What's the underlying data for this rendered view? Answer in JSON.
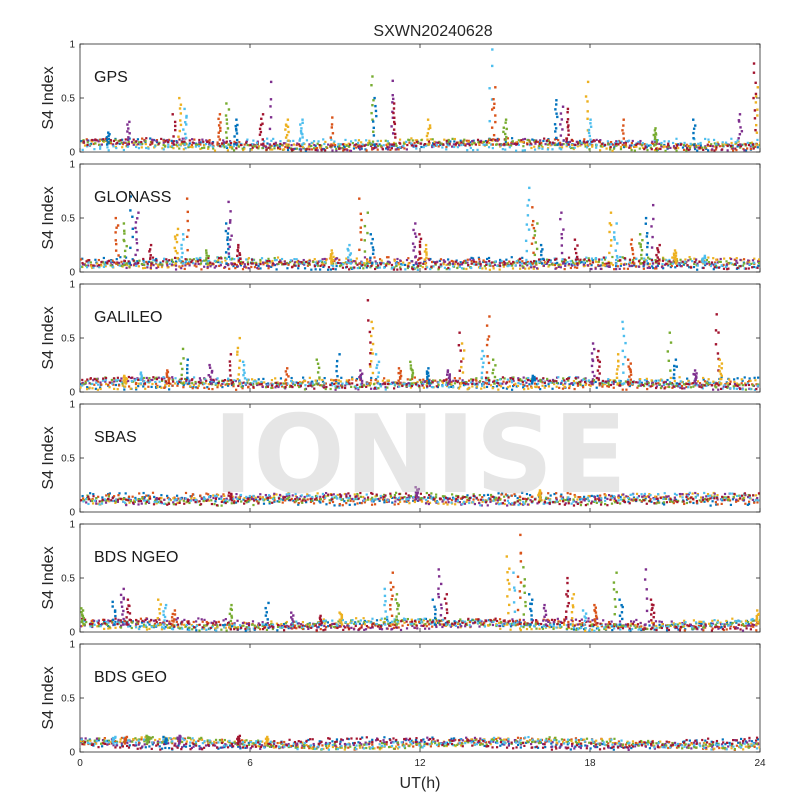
{
  "figure": {
    "title": "SXWN20240628",
    "watermark": "IONISE",
    "xlabel": "UT(h)",
    "ylabel": "S4 Index"
  },
  "chart_data": {
    "type": "scatter",
    "title": "SXWN20240628",
    "xlabel": "UT(h)",
    "ylabel": "S4 Index",
    "xlim": [
      0,
      24
    ],
    "ylim": [
      0,
      1
    ],
    "x_ticks": [
      "0",
      "6",
      "12",
      "18",
      "24"
    ],
    "y_ticks": [
      "0",
      "0.5",
      "1"
    ],
    "grid": false,
    "color_cycle": [
      "#0072BD",
      "#D95319",
      "#EDB120",
      "#7E2F8E",
      "#77AC30",
      "#4DBEEE",
      "#A2142F"
    ],
    "panels": [
      {
        "label": "GPS",
        "baseline": 0.07,
        "spikes": [
          {
            "x": 1.0,
            "y": 0.18
          },
          {
            "x": 1.7,
            "y": 0.28
          },
          {
            "x": 3.3,
            "y": 0.35
          },
          {
            "x": 3.5,
            "y": 0.5
          },
          {
            "x": 3.7,
            "y": 0.4
          },
          {
            "x": 4.9,
            "y": 0.35
          },
          {
            "x": 5.2,
            "y": 0.45
          },
          {
            "x": 5.5,
            "y": 0.3
          },
          {
            "x": 6.7,
            "y": 0.65
          },
          {
            "x": 6.4,
            "y": 0.35
          },
          {
            "x": 7.3,
            "y": 0.3
          },
          {
            "x": 7.8,
            "y": 0.3
          },
          {
            "x": 8.9,
            "y": 0.32
          },
          {
            "x": 10.3,
            "y": 0.7
          },
          {
            "x": 10.4,
            "y": 0.5
          },
          {
            "x": 11.0,
            "y": 0.66
          },
          {
            "x": 11.1,
            "y": 0.45
          },
          {
            "x": 12.3,
            "y": 0.3
          },
          {
            "x": 14.5,
            "y": 0.95
          },
          {
            "x": 14.6,
            "y": 0.6
          },
          {
            "x": 15.0,
            "y": 0.3
          },
          {
            "x": 16.8,
            "y": 0.48
          },
          {
            "x": 17.0,
            "y": 0.42
          },
          {
            "x": 17.2,
            "y": 0.4
          },
          {
            "x": 17.9,
            "y": 0.65
          },
          {
            "x": 18.0,
            "y": 0.3
          },
          {
            "x": 19.2,
            "y": 0.3
          },
          {
            "x": 20.3,
            "y": 0.22
          },
          {
            "x": 21.7,
            "y": 0.3
          },
          {
            "x": 23.3,
            "y": 0.35
          },
          {
            "x": 23.8,
            "y": 0.82
          },
          {
            "x": 23.9,
            "y": 0.6
          }
        ]
      },
      {
        "label": "GLONASS",
        "baseline": 0.08,
        "spikes": [
          {
            "x": 1.3,
            "y": 0.5
          },
          {
            "x": 1.6,
            "y": 0.45
          },
          {
            "x": 1.8,
            "y": 0.7
          },
          {
            "x": 2.0,
            "y": 0.55
          },
          {
            "x": 2.5,
            "y": 0.25
          },
          {
            "x": 3.4,
            "y": 0.4
          },
          {
            "x": 3.6,
            "y": 0.35
          },
          {
            "x": 3.8,
            "y": 0.68
          },
          {
            "x": 4.5,
            "y": 0.2
          },
          {
            "x": 5.2,
            "y": 0.45
          },
          {
            "x": 5.3,
            "y": 0.65
          },
          {
            "x": 5.6,
            "y": 0.25
          },
          {
            "x": 8.9,
            "y": 0.2
          },
          {
            "x": 9.5,
            "y": 0.25
          },
          {
            "x": 9.9,
            "y": 0.68
          },
          {
            "x": 10.1,
            "y": 0.55
          },
          {
            "x": 10.3,
            "y": 0.35
          },
          {
            "x": 11.8,
            "y": 0.45
          },
          {
            "x": 12.0,
            "y": 0.35
          },
          {
            "x": 12.2,
            "y": 0.25
          },
          {
            "x": 15.8,
            "y": 0.78
          },
          {
            "x": 16.0,
            "y": 0.6
          },
          {
            "x": 16.1,
            "y": 0.45
          },
          {
            "x": 16.3,
            "y": 0.25
          },
          {
            "x": 17.0,
            "y": 0.55
          },
          {
            "x": 17.5,
            "y": 0.3
          },
          {
            "x": 18.7,
            "y": 0.55
          },
          {
            "x": 18.9,
            "y": 0.45
          },
          {
            "x": 19.5,
            "y": 0.3
          },
          {
            "x": 19.8,
            "y": 0.35
          },
          {
            "x": 20.0,
            "y": 0.5
          },
          {
            "x": 20.2,
            "y": 0.62
          },
          {
            "x": 20.4,
            "y": 0.25
          },
          {
            "x": 21.0,
            "y": 0.2
          },
          {
            "x": 22.0,
            "y": 0.15
          }
        ]
      },
      {
        "label": "GALILEO",
        "baseline": 0.08,
        "spikes": [
          {
            "x": 1.6,
            "y": 0.15
          },
          {
            "x": 2.2,
            "y": 0.18
          },
          {
            "x": 3.1,
            "y": 0.2
          },
          {
            "x": 3.6,
            "y": 0.4
          },
          {
            "x": 3.8,
            "y": 0.3
          },
          {
            "x": 4.6,
            "y": 0.25
          },
          {
            "x": 5.3,
            "y": 0.35
          },
          {
            "x": 5.6,
            "y": 0.5
          },
          {
            "x": 5.8,
            "y": 0.28
          },
          {
            "x": 7.3,
            "y": 0.22
          },
          {
            "x": 8.4,
            "y": 0.3
          },
          {
            "x": 9.1,
            "y": 0.35
          },
          {
            "x": 9.9,
            "y": 0.2
          },
          {
            "x": 10.2,
            "y": 0.85
          },
          {
            "x": 10.3,
            "y": 0.65
          },
          {
            "x": 10.5,
            "y": 0.35
          },
          {
            "x": 11.3,
            "y": 0.22
          },
          {
            "x": 11.7,
            "y": 0.28
          },
          {
            "x": 12.3,
            "y": 0.22
          },
          {
            "x": 13.0,
            "y": 0.2
          },
          {
            "x": 13.4,
            "y": 0.55
          },
          {
            "x": 13.5,
            "y": 0.45
          },
          {
            "x": 14.2,
            "y": 0.38
          },
          {
            "x": 14.4,
            "y": 0.7
          },
          {
            "x": 14.6,
            "y": 0.3
          },
          {
            "x": 16.0,
            "y": 0.15
          },
          {
            "x": 18.1,
            "y": 0.45
          },
          {
            "x": 18.3,
            "y": 0.38
          },
          {
            "x": 19.0,
            "y": 0.35
          },
          {
            "x": 19.2,
            "y": 0.65
          },
          {
            "x": 19.4,
            "y": 0.3
          },
          {
            "x": 20.8,
            "y": 0.55
          },
          {
            "x": 21.0,
            "y": 0.3
          },
          {
            "x": 21.7,
            "y": 0.2
          },
          {
            "x": 22.5,
            "y": 0.72
          },
          {
            "x": 22.6,
            "y": 0.3
          }
        ]
      },
      {
        "label": "SBAS",
        "baseline": 0.12,
        "spikes": [
          {
            "x": 11.9,
            "y": 0.23
          },
          {
            "x": 5.3,
            "y": 0.18
          },
          {
            "x": 16.2,
            "y": 0.2
          }
        ]
      },
      {
        "label": "BDS NGEO",
        "baseline": 0.07,
        "spikes": [
          {
            "x": 0.1,
            "y": 0.22
          },
          {
            "x": 1.2,
            "y": 0.28
          },
          {
            "x": 1.5,
            "y": 0.4
          },
          {
            "x": 1.7,
            "y": 0.3
          },
          {
            "x": 2.8,
            "y": 0.3
          },
          {
            "x": 3.0,
            "y": 0.25
          },
          {
            "x": 3.3,
            "y": 0.2
          },
          {
            "x": 5.3,
            "y": 0.25
          },
          {
            "x": 6.6,
            "y": 0.27
          },
          {
            "x": 7.5,
            "y": 0.18
          },
          {
            "x": 8.5,
            "y": 0.15
          },
          {
            "x": 9.2,
            "y": 0.18
          },
          {
            "x": 10.8,
            "y": 0.4
          },
          {
            "x": 11.0,
            "y": 0.55
          },
          {
            "x": 11.2,
            "y": 0.35
          },
          {
            "x": 12.5,
            "y": 0.3
          },
          {
            "x": 12.7,
            "y": 0.58
          },
          {
            "x": 12.9,
            "y": 0.35
          },
          {
            "x": 15.1,
            "y": 0.7
          },
          {
            "x": 15.3,
            "y": 0.55
          },
          {
            "x": 15.5,
            "y": 0.9
          },
          {
            "x": 15.7,
            "y": 0.6
          },
          {
            "x": 15.9,
            "y": 0.35
          },
          {
            "x": 16.4,
            "y": 0.25
          },
          {
            "x": 17.2,
            "y": 0.5
          },
          {
            "x": 17.4,
            "y": 0.35
          },
          {
            "x": 17.8,
            "y": 0.2
          },
          {
            "x": 18.2,
            "y": 0.25
          },
          {
            "x": 18.9,
            "y": 0.55
          },
          {
            "x": 19.1,
            "y": 0.3
          },
          {
            "x": 20.0,
            "y": 0.58
          },
          {
            "x": 20.2,
            "y": 0.3
          },
          {
            "x": 23.9,
            "y": 0.2
          }
        ]
      },
      {
        "label": "BDS GEO",
        "baseline": 0.08,
        "spikes": [
          {
            "x": 1.2,
            "y": 0.14
          },
          {
            "x": 1.6,
            "y": 0.14
          },
          {
            "x": 2.4,
            "y": 0.15
          },
          {
            "x": 3.0,
            "y": 0.14
          },
          {
            "x": 3.5,
            "y": 0.15
          },
          {
            "x": 5.6,
            "y": 0.15
          },
          {
            "x": 6.6,
            "y": 0.14
          }
        ]
      }
    ]
  }
}
